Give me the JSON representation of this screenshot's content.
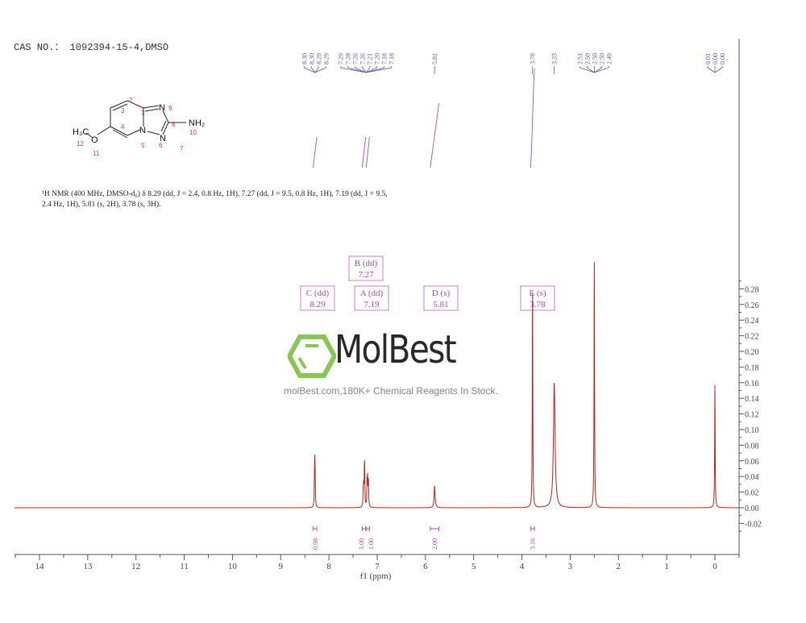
{
  "header": {
    "cas": "CAS NO.： 1092394-15-4,DMSO",
    "nmr_description": "¹H NMR (400 MHz, DMSO-d₆) δ 8.29 (dd, J = 2.4, 0.8 Hz, 1H), 7.27 (dd, J = 9.5, 0.8 Hz, 1H), 7.19 (dd, J = 9.5, 2.4 Hz, 1H), 5.81 (s, 2H), 3.78 (s, 3H)."
  },
  "structure": {
    "atoms": {
      "N9": "N",
      "N6": "N",
      "N7": "N",
      "NH2": "NH₂",
      "O": "O",
      "CH3": "H₃C"
    },
    "numbers": [
      "1",
      "2",
      "3",
      "4",
      "5",
      "6",
      "7",
      "8",
      "9",
      "10",
      "11",
      "12"
    ]
  },
  "watermark": {
    "brand": "MolBest",
    "tagline": "molBest.com,180K+ Chemical Reagents In Stock.",
    "color": "#7cc242"
  },
  "chart_data": {
    "type": "line",
    "title": "",
    "xlabel": "f1 (ppm)",
    "ylabel": "",
    "xlim": [
      14.5,
      -0.5
    ],
    "ylim": [
      -0.03,
      0.3
    ],
    "x_reversed": true,
    "x_ticks": [
      "14",
      "13",
      "12",
      "11",
      "10",
      "9",
      "8",
      "7",
      "6",
      "5",
      "4",
      "3",
      "2",
      "1",
      "0"
    ],
    "y_ticks": [
      "-0.02",
      "0.00",
      "0.02",
      "0.04",
      "0.06",
      "0.08",
      "0.10",
      "0.12",
      "0.14",
      "0.16",
      "0.18",
      "0.20",
      "0.22",
      "0.24",
      "0.26",
      "0.28"
    ],
    "grid": false,
    "line_color": "#b22222",
    "peaks": [
      {
        "ppm": 8.3,
        "height": 0.018
      },
      {
        "ppm": 8.295,
        "height": 0.034
      },
      {
        "ppm": 8.29,
        "height": 0.03
      },
      {
        "ppm": 8.285,
        "height": 0.016
      },
      {
        "ppm": 7.29,
        "height": 0.02
      },
      {
        "ppm": 7.28,
        "height": 0.022
      },
      {
        "ppm": 7.265,
        "height": 0.036
      },
      {
        "ppm": 7.26,
        "height": 0.03
      },
      {
        "ppm": 7.21,
        "height": 0.028
      },
      {
        "ppm": 7.2,
        "height": 0.032
      },
      {
        "ppm": 7.185,
        "height": 0.02
      },
      {
        "ppm": 7.18,
        "height": 0.018
      },
      {
        "ppm": 5.81,
        "height": 0.028,
        "width": 0.012
      },
      {
        "ppm": 3.78,
        "height": 0.285
      },
      {
        "ppm": 3.33,
        "height": 0.16,
        "width": 0.02
      },
      {
        "ppm": 2.5,
        "height": 0.32
      },
      {
        "ppm": 0.0,
        "height": 0.157
      }
    ],
    "peak_labels": [
      {
        "group": [
          "8.30",
          "8.30",
          "8.29",
          "8.29"
        ],
        "ppm": 8.29
      },
      {
        "group": [
          "7.29",
          "7.28",
          "7.26",
          "7.26",
          "7.21",
          "7.20",
          "7.18",
          "7.18"
        ],
        "ppm": 7.23
      },
      {
        "group": [
          "5.81"
        ],
        "ppm": 5.81
      },
      {
        "group": [
          "3.78"
        ],
        "ppm": 3.78
      },
      {
        "group": [
          "3.33"
        ],
        "ppm": 3.33
      },
      {
        "group": [
          "2.51",
          "2.50",
          "2.50",
          "2.50",
          "2.49"
        ],
        "ppm": 2.5
      },
      {
        "group": [
          "0.01",
          "0.00",
          "0.00"
        ],
        "ppm": 0.0
      }
    ],
    "integrals": [
      {
        "ppm": 8.29,
        "from": 8.33,
        "to": 8.25,
        "value": "0.98"
      },
      {
        "ppm": 7.275,
        "from": 7.31,
        "to": 7.24,
        "value": "1.00"
      },
      {
        "ppm": 7.195,
        "from": 7.23,
        "to": 7.16,
        "value": "1.00"
      },
      {
        "ppm": 5.81,
        "from": 5.9,
        "to": 5.72,
        "value": "2.00"
      },
      {
        "ppm": 3.78,
        "from": 3.82,
        "to": 3.74,
        "value": "3.16"
      }
    ],
    "multiplets": [
      {
        "id": "C",
        "type": "(dd)",
        "shift": "8.29",
        "ppm": 8.29
      },
      {
        "id": "B",
        "type": "(dd)",
        "shift": "7.27",
        "ppm": 7.27
      },
      {
        "id": "A",
        "type": "(dd)",
        "shift": "7.19",
        "ppm": 7.19
      },
      {
        "id": "D",
        "type": "(s)",
        "shift": "5.81",
        "ppm": 5.81
      },
      {
        "id": "E",
        "type": "(s)",
        "shift": "3.78",
        "ppm": 3.78
      }
    ]
  }
}
